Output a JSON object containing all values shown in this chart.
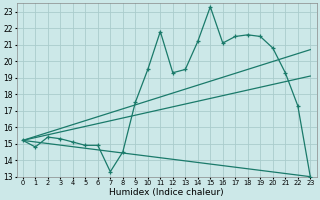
{
  "title": "",
  "xlabel": "Humidex (Indice chaleur)",
  "bg_color": "#cce8e8",
  "grid_color": "#aacccc",
  "line_color": "#1a7a6a",
  "xlim": [
    -0.5,
    23.5
  ],
  "ylim": [
    13,
    23.5
  ],
  "xticks": [
    0,
    1,
    2,
    3,
    4,
    5,
    6,
    7,
    8,
    9,
    10,
    11,
    12,
    13,
    14,
    15,
    16,
    17,
    18,
    19,
    20,
    21,
    22,
    23
  ],
  "yticks": [
    13,
    14,
    15,
    16,
    17,
    18,
    19,
    20,
    21,
    22,
    23
  ],
  "main_x": [
    0,
    1,
    2,
    3,
    4,
    5,
    6,
    7,
    8,
    9,
    10,
    11,
    12,
    13,
    14,
    15,
    16,
    17,
    18,
    19,
    20,
    21,
    22,
    23
  ],
  "main_y": [
    15.2,
    14.8,
    15.4,
    15.3,
    15.1,
    14.9,
    14.9,
    13.3,
    14.5,
    17.5,
    19.5,
    21.8,
    19.3,
    19.5,
    21.2,
    23.3,
    21.1,
    21.5,
    21.6,
    21.5,
    20.8,
    19.3,
    17.3,
    13.0
  ],
  "line1_x": [
    0,
    23
  ],
  "line1_y": [
    15.2,
    20.7
  ],
  "line2_x": [
    0,
    23
  ],
  "line2_y": [
    15.2,
    19.1
  ],
  "line3_x": [
    0,
    23
  ],
  "line3_y": [
    15.2,
    13.0
  ]
}
